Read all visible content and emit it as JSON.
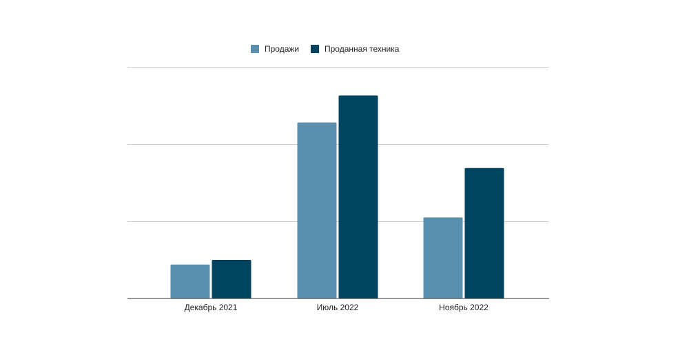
{
  "chart_data": {
    "type": "bar",
    "title": "",
    "xlabel": "",
    "ylabel": "",
    "categories": [
      "Декабрь 2021",
      "Июль 2022",
      "Ноябрь 2022"
    ],
    "series": [
      {
        "name": "Продажи",
        "values": [
          0.44,
          2.28,
          1.05
        ],
        "color": "#5b8fae"
      },
      {
        "name": "Проданная техника",
        "values": [
          0.5,
          2.63,
          1.69
        ],
        "color": "#00445f"
      }
    ],
    "ylim": [
      0,
      3
    ],
    "y_tick_labels_shown": false,
    "grid": true,
    "legend_position": "top-center"
  }
}
